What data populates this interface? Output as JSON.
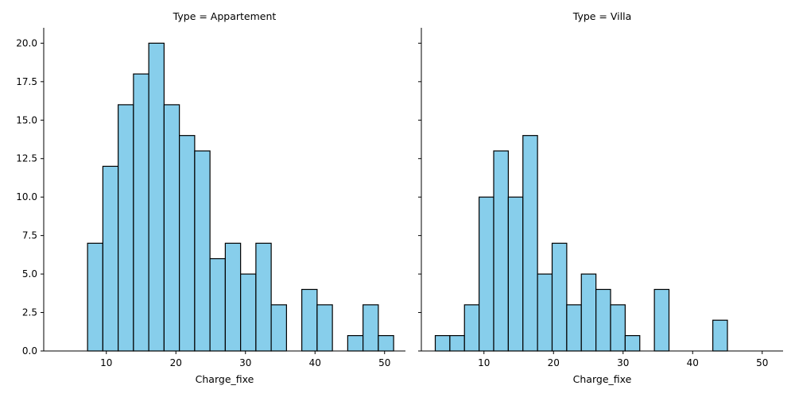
{
  "chart_data": [
    {
      "type": "bar",
      "title": "Type = Appartement",
      "xlabel": "Charge_fixe",
      "ylabel": "",
      "bar_color": "#87ceeb",
      "edge_color": "#000000",
      "xlim": [
        1.0,
        53.0
      ],
      "ylim": [
        0,
        21
      ],
      "xticks": [
        10,
        20,
        30,
        40,
        50
      ],
      "yticks": [
        0.0,
        2.5,
        5.0,
        7.5,
        10.0,
        12.5,
        15.0,
        17.5,
        20.0
      ],
      "ytick_labels": [
        "0.0",
        "2.5",
        "5.0",
        "7.5",
        "10.0",
        "12.5",
        "15.0",
        "17.5",
        "20.0"
      ],
      "show_yticklabels": true,
      "bin_start": 7.3,
      "bin_width": 2.2,
      "values": [
        7,
        12,
        16,
        18,
        20,
        16,
        14,
        13,
        6,
        7,
        5,
        7,
        3,
        0,
        4,
        3,
        0,
        1,
        3,
        1
      ]
    },
    {
      "type": "bar",
      "title": "Type = Villa",
      "xlabel": "Charge_fixe",
      "ylabel": "",
      "bar_color": "#87ceeb",
      "edge_color": "#000000",
      "xlim": [
        1.0,
        53.0
      ],
      "ylim": [
        0,
        21
      ],
      "xticks": [
        10,
        20,
        30,
        40,
        50
      ],
      "yticks": [
        0.0,
        2.5,
        5.0,
        7.5,
        10.0,
        12.5,
        15.0,
        17.5,
        20.0
      ],
      "ytick_labels": [
        "0.0",
        "2.5",
        "5.0",
        "7.5",
        "10.0",
        "12.5",
        "15.0",
        "17.5",
        "20.0"
      ],
      "show_yticklabels": false,
      "bin_start": 3.0,
      "bin_width": 2.1,
      "values": [
        1,
        1,
        3,
        10,
        13,
        10,
        14,
        5,
        7,
        3,
        5,
        4,
        3,
        1,
        0,
        4,
        0,
        0,
        0,
        2
      ]
    }
  ]
}
